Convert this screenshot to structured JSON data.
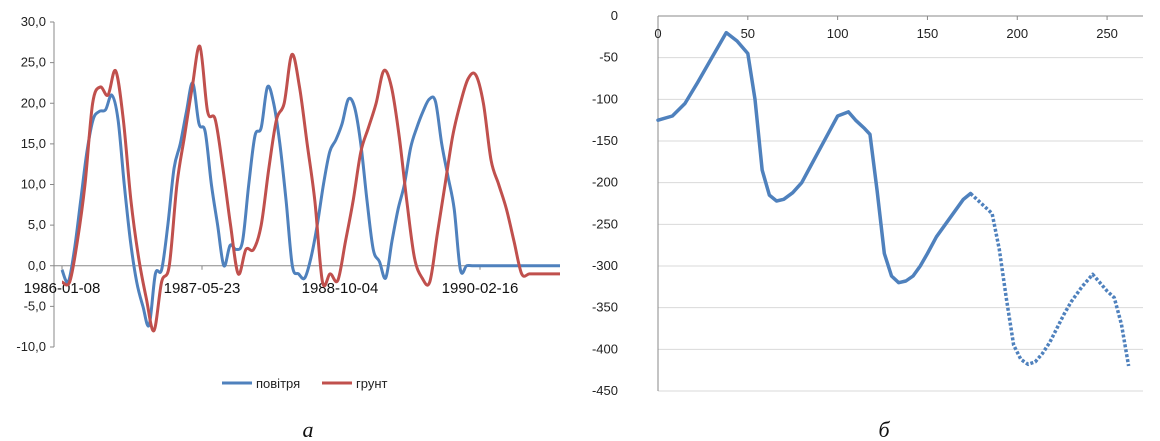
{
  "chart_data": [
    {
      "type": "line",
      "caption": "а",
      "y_ticks": [
        "30,0",
        "25,0",
        "20,0",
        "15,0",
        "10,0",
        "5,0",
        "0,0",
        "-5,0",
        "-10,0"
      ],
      "ylim": [
        -10,
        30
      ],
      "x_ticks": [
        "1986-01-08",
        "1987-05-23",
        "1988-10-04",
        "1990-02-16"
      ],
      "grid": false,
      "legend_position": "bottom",
      "series": [
        {
          "name": "повітря",
          "color": "#4f81bd",
          "x": [
            0,
            1,
            2,
            3,
            4,
            5,
            6,
            7,
            8,
            9,
            10,
            11,
            12,
            13,
            14,
            15,
            16,
            17,
            18,
            19,
            20,
            21,
            22,
            23,
            24,
            25,
            26,
            27,
            28,
            29,
            30,
            31,
            32,
            33,
            34,
            35,
            36,
            37,
            38,
            39,
            40,
            41,
            42,
            43,
            44,
            45,
            46,
            47,
            48,
            49,
            50,
            51,
            52,
            53,
            54,
            55,
            56,
            57,
            58,
            59,
            60,
            61,
            62,
            63,
            64,
            65,
            66,
            67,
            68,
            69,
            70,
            71,
            72,
            73,
            74,
            75,
            76,
            77,
            78,
            79,
            80
          ],
          "values": [
            -0.5,
            -2,
            2,
            8,
            14,
            18,
            19,
            19.2,
            21,
            18,
            10,
            3,
            -2,
            -5,
            -7.3,
            -1,
            -0.5,
            5,
            12,
            15,
            19,
            22.5,
            17.5,
            16.5,
            10,
            5,
            0,
            2.5,
            2,
            3,
            10,
            16,
            17,
            22,
            20,
            15,
            8,
            0,
            -1,
            -1.5,
            1,
            5,
            10,
            14,
            15.5,
            17.5,
            20.5,
            19.5,
            15,
            8,
            2,
            0.5,
            -1.5,
            3,
            7,
            10,
            14.5,
            17,
            19,
            20.5,
            20.2,
            15,
            11,
            7,
            -0.5,
            0,
            0,
            0,
            0,
            0,
            0,
            0,
            0,
            0,
            0,
            0,
            0,
            0,
            0,
            0,
            0
          ]
        },
        {
          "name": "грунт",
          "color": "#c0504d",
          "x": [
            0,
            1,
            2,
            3,
            4,
            5,
            6,
            7,
            8,
            9,
            10,
            11,
            12,
            13,
            14,
            15,
            16,
            17,
            18,
            19,
            20,
            21,
            22,
            23,
            24,
            25,
            26,
            27,
            28,
            29,
            30,
            31,
            32,
            33,
            34,
            35,
            36,
            37,
            38,
            39,
            40,
            41,
            42,
            43,
            44,
            45,
            46,
            47,
            48,
            49,
            50,
            51,
            52,
            53,
            54,
            55,
            56,
            57,
            58,
            59,
            60,
            61,
            62,
            63,
            64,
            65
          ],
          "values": [
            -2,
            -2,
            3,
            10,
            20,
            22,
            21,
            24,
            18,
            8,
            1,
            -4,
            -8,
            -2,
            0,
            10,
            16,
            22,
            27,
            19,
            18,
            12,
            5,
            -1,
            2,
            2,
            5,
            12,
            18,
            20,
            26,
            22,
            15,
            8,
            -2,
            -1,
            -1.8,
            3,
            8,
            14,
            17,
            20,
            24,
            22,
            16,
            8,
            1,
            -1.5,
            -2,
            4,
            10,
            16,
            20,
            23,
            23.5,
            20,
            13,
            10,
            7,
            3,
            -1,
            -1,
            -1,
            -1,
            -1,
            -1
          ]
        }
      ]
    },
    {
      "type": "line",
      "caption": "б",
      "y_ticks": [
        "0",
        "-50",
        "-100",
        "-150",
        "-200",
        "-250",
        "-300",
        "-350",
        "-400",
        "-450"
      ],
      "ylim": [
        -450,
        0
      ],
      "x_ticks": [
        "0",
        "50",
        "100",
        "150",
        "200",
        "250"
      ],
      "xlim": [
        0,
        270
      ],
      "grid": true,
      "series": [
        {
          "name": "",
          "color": "#4f81bd",
          "style": "solid",
          "x": [
            0,
            8,
            15,
            22,
            30,
            38,
            44,
            50,
            54,
            58,
            62,
            66,
            70,
            75,
            80,
            85,
            90,
            95,
            100,
            106,
            110,
            115,
            118,
            122,
            126,
            130,
            134,
            138,
            142,
            146,
            150,
            155,
            160,
            165,
            170,
            174
          ],
          "values": [
            -125,
            -120,
            -105,
            -80,
            -50,
            -20,
            -30,
            -45,
            -100,
            -185,
            -215,
            -222,
            -220,
            -212,
            -200,
            -180,
            -160,
            -140,
            -120,
            -115,
            -125,
            -135,
            -142,
            -210,
            -285,
            -312,
            -320,
            -318,
            -312,
            -300,
            -285,
            -265,
            -250,
            -235,
            -220,
            -213
          ]
        },
        {
          "name": "",
          "color": "#4f81bd",
          "style": "dotted",
          "x": [
            174,
            180,
            186,
            190,
            194,
            198,
            202,
            206,
            210,
            214,
            218,
            222,
            226,
            230,
            236,
            242,
            246,
            250,
            254,
            258,
            262
          ],
          "values": [
            -213,
            -225,
            -237,
            -280,
            -340,
            -395,
            -412,
            -418,
            -415,
            -405,
            -392,
            -375,
            -358,
            -343,
            -325,
            -310,
            -320,
            -330,
            -338,
            -370,
            -420
          ]
        }
      ]
    }
  ]
}
